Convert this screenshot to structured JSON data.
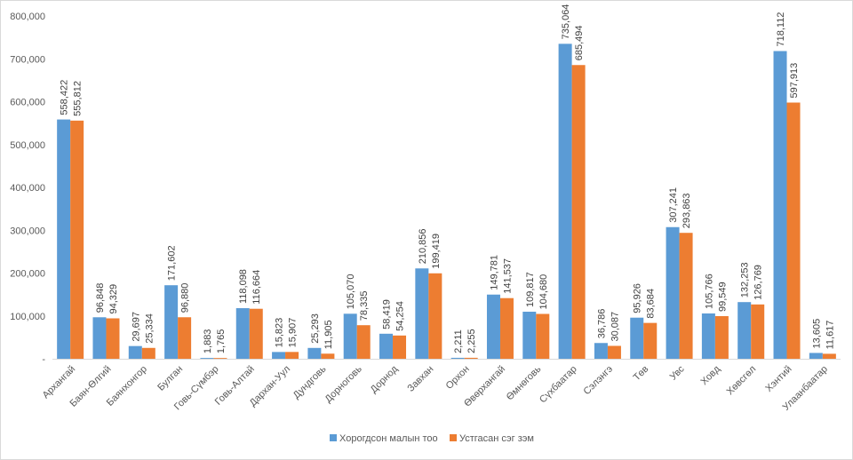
{
  "chart_data": {
    "type": "bar",
    "ylim": [
      0,
      800000
    ],
    "yticks": [
      0,
      100000,
      200000,
      300000,
      400000,
      500000,
      600000,
      700000,
      800000
    ],
    "ytick_labels": [
      "-",
      "100,000",
      "200,000",
      "300,000",
      "400,000",
      "500,000",
      "600,000",
      "700,000",
      "800,000"
    ],
    "grid": false,
    "legend_position": "bottom",
    "categories": [
      "Архангай",
      "Баян-Өлгий",
      "Баянхонгор",
      "Булган",
      "Говь-Сүмбэр",
      "Говь-Алтай",
      "Дархан-Уул",
      "Дундговь",
      "Дорноговь",
      "Дорнод",
      "Завхан",
      "Орхон",
      "Өвөрхангай",
      "Өмнөговь",
      "Сүхбаатар",
      "Сэлэнгэ",
      "Төв",
      "Увс",
      "Ховд",
      "Хөвсгөл",
      "Хэнтий",
      "Улаанбаатар"
    ],
    "series": [
      {
        "name": "Хорогдсон малын тоо",
        "color": "#5b9bd5",
        "values": [
          558422,
          96848,
          29697,
          171602,
          1883,
          118098,
          15823,
          25293,
          105070,
          58419,
          210856,
          2211,
          149781,
          109817,
          735064,
          36786,
          95926,
          307241,
          105766,
          132253,
          718112,
          13605
        ],
        "labels": [
          "558,422",
          "96,848",
          "29,697",
          "171,602",
          "1,883",
          "118,098",
          "15,823",
          "25,293",
          "105,070",
          "58,419",
          "210,856",
          "2,211",
          "149,781",
          "109,817",
          "735,064",
          "36,786",
          "95,926",
          "307,241",
          "105,766",
          "132,253",
          "718,112",
          "13,605"
        ]
      },
      {
        "name": "Устгасан сэг зэм",
        "color": "#ed7d31",
        "values": [
          555812,
          94329,
          25334,
          96880,
          1765,
          116664,
          15907,
          11905,
          78335,
          54254,
          199419,
          2255,
          141537,
          104680,
          685494,
          30087,
          83684,
          293863,
          99549,
          126769,
          597913,
          11617
        ],
        "labels": [
          "555,812",
          "94,329",
          "25,334",
          "96,880",
          "1,765",
          "116,664",
          "15,907",
          "11,905",
          "78,335",
          "54,254",
          "199,419",
          "2,255",
          "141,537",
          "104,680",
          "685,494",
          "30,087",
          "83,684",
          "293,863",
          "99,549",
          "126,769",
          "597,913",
          "11,617"
        ]
      }
    ]
  }
}
